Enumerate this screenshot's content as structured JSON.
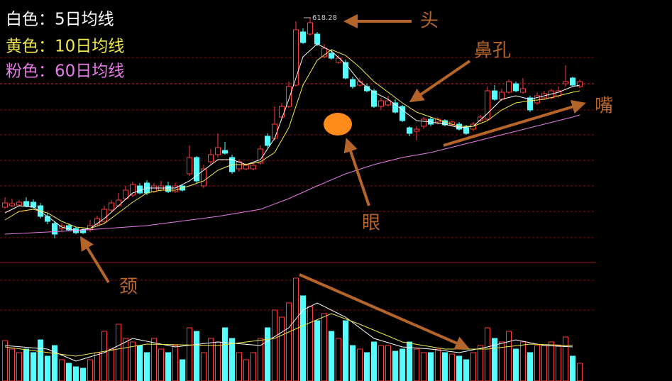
{
  "chart_data": {
    "type": "candlestick",
    "up_color": "#ff3b3b",
    "down_color": "#54ffff",
    "ylim": [
      273,
      643
    ],
    "open": [
      351,
      353,
      354,
      359,
      358,
      353,
      338,
      328,
      321,
      325,
      321,
      318,
      319,
      327,
      331,
      347,
      353,
      363,
      368,
      381,
      385,
      373,
      375,
      381,
      373,
      381,
      398,
      421,
      381,
      415,
      425,
      431,
      421,
      405,
      405,
      405,
      413,
      451,
      448,
      478,
      493,
      523,
      598,
      595,
      595,
      563,
      568,
      555,
      555,
      531,
      523,
      521,
      515,
      493,
      495,
      498,
      493,
      463,
      458,
      465,
      475,
      471,
      473,
      467,
      468,
      463,
      461,
      473,
      475,
      515,
      503,
      513,
      525,
      513,
      505,
      498,
      505,
      505,
      508,
      525,
      533,
      521
    ],
    "high": [
      365,
      363,
      361,
      365,
      362,
      357,
      343,
      331,
      329,
      328,
      323,
      321,
      333,
      339,
      353,
      361,
      371,
      381,
      387,
      385,
      389,
      385,
      388,
      387,
      385,
      383,
      438,
      423,
      411,
      433,
      455,
      443,
      425,
      418,
      413,
      413,
      438,
      455,
      493,
      498,
      528,
      613,
      603,
      618.28,
      598,
      581,
      573,
      565,
      559,
      535,
      533,
      525,
      518,
      505,
      508,
      503,
      495,
      465,
      465,
      478,
      478,
      478,
      475,
      473,
      471,
      467,
      471,
      481,
      521,
      523,
      518,
      531,
      528,
      533,
      508,
      513,
      515,
      518,
      521,
      551,
      535,
      531
    ],
    "low": [
      349,
      351,
      352,
      351,
      349,
      335,
      327,
      307,
      317,
      317,
      313,
      313,
      316,
      325,
      329,
      345,
      351,
      361,
      365,
      369,
      368,
      371,
      373,
      371,
      371,
      373,
      395,
      385,
      378,
      411,
      421,
      425,
      398,
      401,
      403,
      403,
      411,
      435,
      445,
      475,
      491,
      521,
      581,
      593,
      578,
      561,
      559,
      553,
      531,
      518,
      521,
      513,
      491,
      488,
      493,
      483,
      471,
      451,
      445,
      461,
      465,
      468,
      465,
      465,
      459,
      453,
      458,
      471,
      473,
      501,
      501,
      511,
      513,
      511,
      485,
      495,
      503,
      503,
      505,
      521,
      521,
      519
    ],
    "close": [
      357,
      356,
      358,
      353,
      351,
      338,
      331,
      313,
      325,
      319,
      315,
      315,
      325,
      335,
      348,
      357,
      361,
      375,
      383,
      371,
      371,
      381,
      381,
      373,
      381,
      375,
      421,
      388,
      405,
      425,
      435,
      427,
      401,
      415,
      410,
      410,
      433,
      438,
      468,
      493,
      521,
      601,
      583,
      611,
      581,
      575,
      561,
      561,
      533,
      521,
      528,
      515,
      493,
      501,
      501,
      485,
      473,
      455,
      461,
      475,
      468,
      475,
      467,
      471,
      461,
      455,
      468,
      478,
      515,
      503,
      513,
      528,
      515,
      518,
      488,
      508,
      511,
      515,
      515,
      528,
      523,
      528
    ],
    "series": [
      {
        "name": "白色：5日均线",
        "color": "#ffffff",
        "x": [
          0,
          2,
          4,
          6,
          8,
          10,
          12,
          14,
          16,
          18,
          20,
          22,
          24,
          26,
          28,
          30,
          32,
          34,
          36,
          38,
          40,
          42,
          44,
          46,
          48,
          50,
          52,
          54,
          56,
          58,
          60,
          62,
          64,
          66,
          68,
          70,
          72,
          74,
          76,
          78,
          80,
          81
        ],
        "values": [
          343,
          353,
          351,
          338,
          323,
          318,
          321,
          335,
          353,
          371,
          378,
          378,
          378,
          388,
          403,
          418,
          418,
          411,
          418,
          448,
          503,
          563,
          581,
          571,
          553,
          528,
          513,
          503,
          488,
          473,
          471,
          468,
          463,
          465,
          483,
          503,
          508,
          503,
          508,
          513,
          521,
          523
        ]
      },
      {
        "name": "黄色：10日均线",
        "color": "#f2e94e",
        "x": [
          0,
          2,
          4,
          6,
          8,
          10,
          12,
          14,
          16,
          18,
          20,
          22,
          24,
          26,
          28,
          30,
          32,
          34,
          36,
          38,
          40,
          42,
          44,
          46,
          48,
          50,
          52,
          54,
          56,
          58,
          60,
          62,
          64,
          66,
          68,
          70,
          72,
          74,
          76,
          78,
          80,
          81
        ],
        "values": [
          333,
          345,
          348,
          343,
          331,
          323,
          321,
          328,
          343,
          358,
          371,
          375,
          375,
          381,
          388,
          403,
          411,
          411,
          415,
          428,
          463,
          523,
          558,
          573,
          565,
          548,
          528,
          513,
          498,
          485,
          478,
          471,
          465,
          465,
          473,
          488,
          498,
          501,
          503,
          508,
          513,
          515
        ]
      },
      {
        "name": "粉色：60日均线",
        "color": "#e87ce8",
        "x": [
          0,
          10,
          20,
          30,
          36,
          40,
          44,
          48,
          52,
          56,
          60,
          64,
          68,
          72,
          76,
          80,
          81
        ],
        "values": [
          313,
          318,
          325,
          338,
          348,
          363,
          381,
          398,
          411,
          421,
          428,
          438,
          448,
          458,
          468,
          478,
          481
        ]
      }
    ],
    "volume_ylim": [
      0,
      150
    ],
    "volume": [
      57,
      45,
      40,
      45,
      40,
      58,
      35,
      50,
      30,
      25,
      20,
      18,
      30,
      40,
      70,
      45,
      80,
      60,
      55,
      50,
      40,
      60,
      45,
      40,
      50,
      30,
      75,
      70,
      40,
      60,
      55,
      75,
      60,
      40,
      30,
      40,
      60,
      75,
      100,
      90,
      110,
      145,
      120,
      105,
      85,
      95,
      70,
      60,
      85,
      50,
      45,
      40,
      55,
      50,
      50,
      42,
      45,
      55,
      45,
      40,
      40,
      45,
      40,
      38,
      35,
      30,
      40,
      50,
      75,
      60,
      55,
      70,
      45,
      55,
      40,
      50,
      50,
      55,
      50,
      62,
      35,
      25
    ],
    "volume_series": [
      {
        "color": "#ffffff",
        "x": [
          0,
          6,
          10,
          14,
          18,
          24,
          30,
          36,
          40,
          42,
          44,
          48,
          52,
          56,
          60,
          64,
          68,
          72,
          76,
          80
        ],
        "values": [
          50,
          45,
          28,
          40,
          60,
          48,
          55,
          50,
          75,
          100,
          110,
          90,
          60,
          48,
          45,
          40,
          48,
          58,
          50,
          48
        ]
      },
      {
        "color": "#f2e94e",
        "x": [
          0,
          10,
          20,
          30,
          38,
          42,
          46,
          50,
          56,
          62,
          68,
          74,
          80
        ],
        "values": [
          48,
          35,
          52,
          50,
          60,
          78,
          95,
          80,
          55,
          45,
          45,
          52,
          50
        ]
      }
    ],
    "annotations": [
      "头",
      "鼻孔",
      "眼",
      "嘴",
      "颈"
    ]
  }
}
